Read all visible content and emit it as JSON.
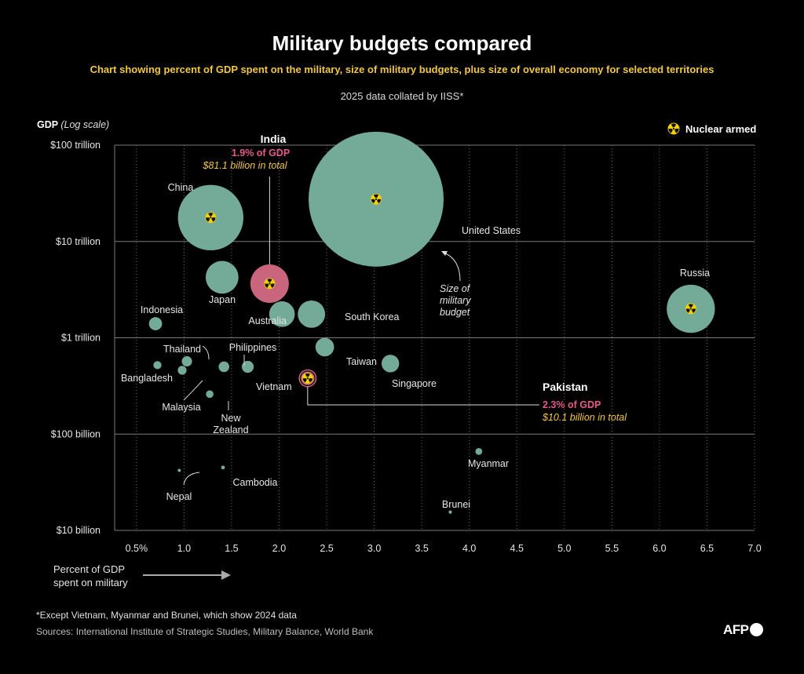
{
  "header": {
    "title": "Military budgets compared",
    "subtitle": "Chart showing percent of GDP spent on the military, size of military budgets, plus size of overall economy for selected territories",
    "note": "2025 data collated by IISS*"
  },
  "chart_data": {
    "type": "scatter",
    "ylabel": "GDP",
    "ylabel_suffix": "(Log scale)",
    "xlabel": "Percent of GDP spent on military",
    "x_ticks": [
      {
        "value": 0.5,
        "label": "0.5%"
      },
      {
        "value": 1.0,
        "label": "1.0"
      },
      {
        "value": 1.5,
        "label": "1.5"
      },
      {
        "value": 2.0,
        "label": "2.0"
      },
      {
        "value": 2.5,
        "label": "2.5"
      },
      {
        "value": 3.0,
        "label": "3.0"
      },
      {
        "value": 3.5,
        "label": "3.5"
      },
      {
        "value": 4.0,
        "label": "4.0"
      },
      {
        "value": 4.5,
        "label": "4.5"
      },
      {
        "value": 5.0,
        "label": "5.0"
      },
      {
        "value": 5.5,
        "label": "5.5"
      },
      {
        "value": 6.0,
        "label": "6.0"
      },
      {
        "value": 6.5,
        "label": "6.5"
      },
      {
        "value": 7.0,
        "label": "7.0"
      }
    ],
    "y_ticks": [
      {
        "value": 10,
        "label": "$10 billion"
      },
      {
        "value": 100,
        "label": "$100 billion"
      },
      {
        "value": 1000,
        "label": "$1 trillion"
      },
      {
        "value": 10000,
        "label": "$10 trillion"
      },
      {
        "value": 100000,
        "label": "$100 trillion"
      }
    ],
    "xlim": [
      0.27,
      7.0
    ],
    "ylim_gdp_billion": [
      10,
      100000
    ],
    "y_scale": "log",
    "size_encoding": "Size of military budget",
    "legend": {
      "label": "Nuclear armed",
      "placement": "top-right"
    },
    "points": [
      {
        "name": "United States",
        "label": "United States",
        "pct": 3.02,
        "gdp": 27500,
        "budget": 1000,
        "nuclear": true
      },
      {
        "name": "China",
        "label": "China",
        "pct": 1.28,
        "gdp": 17700,
        "budget": 235,
        "nuclear": true
      },
      {
        "name": "Russia",
        "label": "Russia",
        "pct": 6.33,
        "gdp": 2000,
        "budget": 127,
        "nuclear": true
      },
      {
        "name": "India",
        "label": "",
        "pct": 1.9,
        "gdp": 3650,
        "budget": 81.1,
        "nuclear": true,
        "highlight": true
      },
      {
        "name": "Japan",
        "label": "Japan",
        "pct": 1.4,
        "gdp": 4250,
        "budget": 59,
        "nuclear": false
      },
      {
        "name": "South Korea",
        "label": "South Korea",
        "pct": 2.34,
        "gdp": 1760,
        "budget": 41,
        "nuclear": false
      },
      {
        "name": "Australia",
        "label": "Australia",
        "pct": 2.03,
        "gdp": 1760,
        "budget": 36,
        "nuclear": false
      },
      {
        "name": "Taiwan",
        "label": "Taiwan",
        "pct": 2.48,
        "gdp": 800,
        "budget": 19,
        "nuclear": false
      },
      {
        "name": "Singapore",
        "label": "Singapore",
        "pct": 3.17,
        "gdp": 540,
        "budget": 17,
        "nuclear": false
      },
      {
        "name": "Indonesia",
        "label": "Indonesia",
        "pct": 0.7,
        "gdp": 1400,
        "budget": 9.5,
        "nuclear": false
      },
      {
        "name": "Pakistan",
        "label": "",
        "pct": 2.3,
        "gdp": 380,
        "budget": 10.1,
        "nuclear": true,
        "highlight": true
      },
      {
        "name": "Thailand",
        "label": "Thailand",
        "pct": 1.03,
        "gdp": 570,
        "budget": 5.8,
        "nuclear": false
      },
      {
        "name": "Philippines",
        "label": "Philippines",
        "pct": 1.42,
        "gdp": 500,
        "budget": 6.2,
        "nuclear": false
      },
      {
        "name": "Vietnam",
        "label": "Vietnam",
        "pct": 1.67,
        "gdp": 500,
        "budget": 7.8,
        "nuclear": false
      },
      {
        "name": "Bangladesh",
        "label": "Bangladesh",
        "pct": 0.72,
        "gdp": 520,
        "budget": 3.6,
        "nuclear": false
      },
      {
        "name": "Malaysia",
        "label": "Malaysia",
        "pct": 0.98,
        "gdp": 460,
        "budget": 4.3,
        "nuclear": false
      },
      {
        "name": "New Zealand",
        "label": "New\nZealand",
        "pct": 1.27,
        "gdp": 260,
        "budget": 3.1,
        "nuclear": false
      },
      {
        "name": "Myanmar",
        "label": "Myanmar",
        "pct": 4.1,
        "gdp": 66,
        "budget": 2.6,
        "nuclear": false
      },
      {
        "name": "Cambodia",
        "label": "Cambodia",
        "pct": 1.41,
        "gdp": 45,
        "budget": 0.8,
        "nuclear": false
      },
      {
        "name": "Nepal",
        "label": "Nepal",
        "pct": 0.95,
        "gdp": 42,
        "budget": 0.5,
        "nuclear": false
      },
      {
        "name": "Brunei",
        "label": "Brunei",
        "pct": 3.8,
        "gdp": 15.5,
        "budget": 0.6,
        "nuclear": false
      }
    ],
    "callouts": {
      "india": {
        "title": "India",
        "pct_text": "1.9% of GDP",
        "budget_text": "$81.1 billion in total"
      },
      "pakistan": {
        "title": "Pakistan",
        "pct_text": "2.3% of GDP",
        "budget_text": "$10.1 billion in total"
      },
      "size_note": [
        "Size of",
        "military",
        "budget"
      ]
    },
    "colors": {
      "bubble": "#73aa98",
      "highlight": "#c9657c",
      "pct_text": "#e55a8a",
      "budget_text": "#f2c744",
      "nuclear": "#f5d000"
    }
  },
  "footer": {
    "xlegend_line1": "Percent of GDP",
    "xlegend_line2": "spent on military",
    "footnote": "*Except Vietnam, Myanmar and Brunei, which show 2024 data",
    "sources": "Sources: International Institute of Strategic Studies, Military Balance, World Bank",
    "logo": "AFP"
  }
}
